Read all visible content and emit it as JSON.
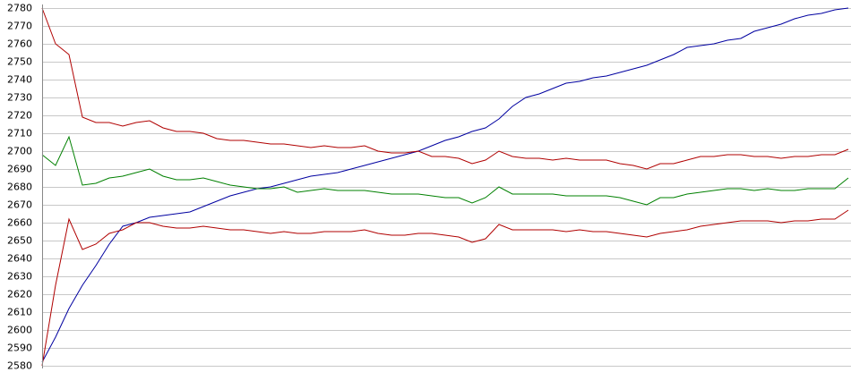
{
  "chart_data": {
    "type": "line",
    "categories": [
      null,
      null,
      null,
      null,
      null,
      null,
      null,
      null,
      null,
      null,
      null,
      null,
      null,
      null,
      null,
      null,
      null,
      null,
      null,
      null,
      null,
      null,
      null,
      null,
      null,
      null,
      null,
      null,
      null,
      null,
      null,
      null,
      null,
      null,
      null,
      null,
      null,
      null,
      null,
      null,
      null,
      null,
      null,
      null,
      null,
      null,
      null,
      null,
      null,
      null,
      null,
      null,
      null,
      null,
      null,
      null,
      null,
      null,
      null,
      null,
      null
    ],
    "series": [
      {
        "color": "#0000a0",
        "values": [
          2582,
          2596,
          2612,
          2625,
          2636,
          2648,
          2658,
          2660,
          2663,
          2664,
          2665,
          2666,
          2669,
          2672,
          2675,
          2677,
          2679,
          2680,
          2682,
          2684,
          2686,
          2687,
          2688,
          2690,
          2692,
          2694,
          2696,
          2698,
          2700,
          2703,
          2706,
          2708,
          2711,
          2713,
          2718,
          2725,
          2730,
          2732,
          2735,
          2738,
          2739,
          2741,
          2742,
          2744,
          2746,
          2748,
          2751,
          2754,
          2758,
          2759,
          2760,
          2762,
          2763,
          2767,
          2769,
          2771,
          2774,
          2776,
          2777,
          2779,
          2780
        ]
      },
      {
        "color": "#b00000",
        "values": [
          2780,
          2760,
          2754,
          2719,
          2716,
          2716,
          2714,
          2716,
          2717,
          2713,
          2711,
          2711,
          2710,
          2707,
          2706,
          2706,
          2705,
          2704,
          2704,
          2703,
          2702,
          2703,
          2702,
          2702,
          2703,
          2700,
          2699,
          2699,
          2700,
          2697,
          2697,
          2696,
          2693,
          2695,
          2700,
          2697,
          2696,
          2696,
          2695,
          2696,
          2695,
          2695,
          2695,
          2693,
          2692,
          2690,
          2693,
          2693,
          2695,
          2697,
          2697,
          2698,
          2698,
          2697,
          2697,
          2696,
          2697,
          2697,
          2698,
          2698,
          2701
        ]
      },
      {
        "color": "#008000",
        "values": [
          2698,
          2692,
          2708,
          2681,
          2682,
          2685,
          2686,
          2688,
          2690,
          2686,
          2684,
          2684,
          2685,
          2683,
          2681,
          2680,
          2679,
          2679,
          2680,
          2677,
          2678,
          2679,
          2678,
          2678,
          2678,
          2677,
          2676,
          2676,
          2676,
          2675,
          2674,
          2674,
          2671,
          2674,
          2680,
          2676,
          2676,
          2676,
          2676,
          2675,
          2675,
          2675,
          2675,
          2674,
          2672,
          2670,
          2674,
          2674,
          2676,
          2677,
          2678,
          2679,
          2679,
          2678,
          2679,
          2678,
          2678,
          2679,
          2679,
          2679,
          2685
        ]
      },
      {
        "color": "#b00000",
        "values": [
          2580,
          2625,
          2662,
          2645,
          2648,
          2654,
          2656,
          2660,
          2660,
          2658,
          2657,
          2657,
          2658,
          2657,
          2656,
          2656,
          2655,
          2654,
          2655,
          2654,
          2654,
          2655,
          2655,
          2655,
          2656,
          2654,
          2653,
          2653,
          2654,
          2654,
          2653,
          2652,
          2649,
          2651,
          2659,
          2656,
          2656,
          2656,
          2656,
          2655,
          2656,
          2655,
          2655,
          2654,
          2653,
          2652,
          2654,
          2655,
          2656,
          2658,
          2659,
          2660,
          2661,
          2661,
          2661,
          2660,
          2661,
          2661,
          2662,
          2662,
          2667
        ]
      }
    ],
    "ylim": [
      2580,
      2780
    ],
    "yticks": [
      2580,
      2590,
      2600,
      2610,
      2620,
      2630,
      2640,
      2650,
      2660,
      2670,
      2680,
      2690,
      2700,
      2710,
      2720,
      2730,
      2740,
      2750,
      2760,
      2770,
      2780
    ],
    "grid": true
  }
}
